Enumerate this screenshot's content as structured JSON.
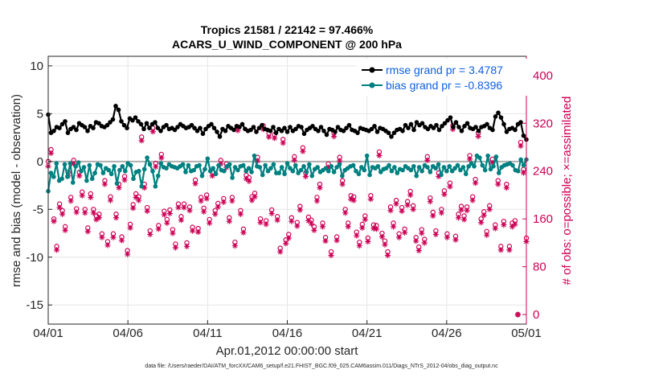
{
  "chart_data": {
    "type": "line",
    "title": "Tropics 21581 / 22142 = 97.466%",
    "subtitle": "ACARS_U_WIND_COMPONENT @ 200 hPa",
    "xlabel": "Apr.01,2012 00:00:00 start",
    "ylabel_left": "rmse and bias (model - observation)",
    "ylabel_right": "# of obs: o=possible; ×=assimilated",
    "footnote": "data file: /Users/raeder/DAI/ATM_forcXX/CAM6_setup/f.e21.FHIST_BGC.f09_025.CAM6assim.011/Diags_NTrS_2012-04/obs_diag_output.nc",
    "x_range_days": [
      0,
      30
    ],
    "ylim_left": [
      -17,
      11
    ],
    "ylim_right": [
      -16,
      432
    ],
    "xticks": [
      {
        "day": 0,
        "label": "04/01"
      },
      {
        "day": 5,
        "label": "04/06"
      },
      {
        "day": 10,
        "label": "04/11"
      },
      {
        "day": 15,
        "label": "04/16"
      },
      {
        "day": 20,
        "label": "04/21"
      },
      {
        "day": 25,
        "label": "04/26"
      },
      {
        "day": 30,
        "label": "05/01"
      }
    ],
    "yticks_left": [
      {
        "value": 10,
        "label": "10"
      },
      {
        "value": 5,
        "label": "5"
      },
      {
        "value": 0,
        "label": "0"
      },
      {
        "value": -5,
        "label": "-5"
      },
      {
        "value": -10,
        "label": "-10"
      },
      {
        "value": -15,
        "label": "-15"
      }
    ],
    "yticks_right": [
      {
        "value": 400,
        "label": "400"
      },
      {
        "value": 320,
        "label": "320"
      },
      {
        "value": 240,
        "label": "240"
      },
      {
        "value": 160,
        "label": "160"
      },
      {
        "value": 80,
        "label": "80"
      },
      {
        "value": 0,
        "label": "0"
      }
    ],
    "grid": true,
    "legend_position": "top-right",
    "zero_line": 0,
    "series": [
      {
        "name": "rmse grand pr = 3.4787",
        "axis": "left",
        "color": "#000000",
        "marker": "circle",
        "values": [
          4.9,
          3.0,
          3.2,
          3.6,
          3.5,
          3.9,
          4.2,
          3.0,
          3.4,
          3.6,
          3.3,
          4.0,
          3.8,
          3.6,
          3.2,
          3.7,
          3.5,
          4.1,
          4.0,
          3.7,
          3.6,
          3.8,
          4.1,
          4.4,
          5.8,
          5.4,
          4.2,
          3.8,
          3.5,
          4.5,
          4.3,
          4.6,
          4.2,
          3.9,
          3.4,
          4.0,
          3.5,
          3.9,
          4.1,
          3.5,
          3.2,
          3.6,
          3.8,
          3.4,
          3.5,
          3.3,
          3.6,
          3.9,
          3.7,
          3.5,
          3.6,
          3.8,
          3.5,
          3.2,
          3.5,
          2.9,
          3.4,
          3.7,
          3.9,
          3.5,
          3.1,
          2.6,
          3.4,
          3.2,
          3.7,
          3.5,
          3.3,
          3.7,
          3.6,
          3.9,
          3.4,
          3.2,
          3.3,
          3.6,
          3.1,
          3.5,
          3.8,
          3.4,
          3.3,
          3.2,
          3.6,
          3.0,
          3.4,
          3.2,
          3.5,
          3.1,
          3.6,
          3.2,
          3.4,
          3.7,
          3.6,
          2.9,
          3.3,
          3.5,
          3.7,
          3.4,
          3.2,
          3.6,
          3.2,
          2.8,
          3.4,
          3.3,
          3.1,
          3.6,
          3.3,
          3.2,
          3.5,
          3.8,
          3.3,
          3.2,
          3.0,
          3.5,
          3.4,
          3.3,
          3.2,
          3.4,
          3.7,
          3.1,
          3.5,
          3.4,
          3.2,
          3.0,
          2.6,
          3.0,
          3.3,
          3.4,
          3.2,
          3.8,
          3.5,
          3.9,
          3.3,
          4.1,
          3.8,
          4.0,
          3.6,
          3.4,
          3.7,
          3.5,
          3.8,
          3.3,
          3.7,
          4.0,
          4.3,
          4.6,
          3.6,
          4.1,
          3.6,
          3.2,
          3.7,
          4.0,
          3.5,
          3.4,
          3.6,
          3.2,
          3.6,
          3.7,
          3.9,
          3.5,
          3.3,
          4.7,
          5.1,
          4.6,
          3.9,
          3.1,
          3.4,
          3.5,
          3.3,
          3.9,
          4.1,
          2.7,
          2.3
        ]
      },
      {
        "name": "bias grand pr = -0.8396",
        "axis": "left",
        "color": "#008080",
        "marker": "circle",
        "values": [
          -3.1,
          -1.2,
          -1.6,
          -0.2,
          -2.0,
          -1.8,
          -0.3,
          -1.6,
          -0.2,
          -2.2,
          -0.5,
          -0.1,
          -1.0,
          -0.6,
          -2.0,
          -0.4,
          -1.8,
          -1.2,
          -0.3,
          -0.4,
          -1.2,
          -0.7,
          -0.9,
          -1.3,
          -0.5,
          -2.3,
          -0.9,
          -0.5,
          -1.0,
          -0.2,
          -0.4,
          -1.8,
          -1.1,
          -1.0,
          -2.6,
          -0.8,
          0.4,
          -0.3,
          -1.0,
          -2.6,
          -1.5,
          -0.2,
          -0.6,
          -0.7,
          -0.3,
          -0.5,
          -0.6,
          -0.7,
          -0.5,
          -0.3,
          -1.1,
          -0.4,
          -1.0,
          -0.9,
          -0.5,
          -0.4,
          -1.5,
          -0.8,
          0.3,
          -1.0,
          -0.7,
          -1.3,
          -0.4,
          -0.9,
          -1.0,
          -0.5,
          -0.3,
          -1.7,
          -0.6,
          -0.9,
          -0.5,
          -0.4,
          -1.0,
          -0.7,
          -1.1,
          0.6,
          -0.5,
          -0.6,
          -1.4,
          -0.4,
          -1.0,
          -0.7,
          -0.3,
          -1.2,
          -1.2,
          -0.6,
          -1.3,
          -0.2,
          -0.7,
          -1.0,
          -0.4,
          -1.2,
          -0.9,
          -0.5,
          -1.1,
          -0.3,
          -1.5,
          -0.8,
          -0.6,
          -1.1,
          -0.9,
          -0.7,
          -1.0,
          -0.5,
          -1.1,
          -0.6,
          -0.3,
          -1.5,
          -0.9,
          -0.7,
          -0.5,
          -0.4,
          -1.0,
          -1.3,
          -0.6,
          -0.9,
          0.6,
          -1.4,
          -0.6,
          -0.7,
          -0.5,
          -1.1,
          -0.8,
          -0.7,
          -0.4,
          -1.0,
          -0.6,
          -1.2,
          -0.8,
          -0.9,
          -0.5,
          -0.7,
          -0.9,
          -0.5,
          -1.5,
          -0.6,
          -1.0,
          -0.4,
          -0.6,
          -1.1,
          -0.5,
          -0.7,
          -0.3,
          -1.4,
          -0.6,
          -1.0,
          -0.5,
          -1.0,
          -0.7,
          -0.4,
          -0.9,
          -0.6,
          -1.3,
          -0.5,
          -0.2,
          -0.5,
          0.6,
          0.4,
          -0.4,
          -0.9,
          0.6,
          -0.8,
          -0.5,
          0.5,
          -1.2,
          -0.6,
          -0.4,
          -0.3,
          -0.2,
          -0.4,
          -0.9,
          -1.0,
          0.2,
          -0.4,
          0.2
        ]
      },
      {
        "name": "possible",
        "axis": "right",
        "color": "#cc0055",
        "marker": "open-circle",
        "values": [
          256,
          276,
          160,
          114,
          185,
          174,
          147,
          238,
          196,
          258,
          177,
          238,
          205,
          176,
          145,
          202,
          176,
          165,
          168,
          135,
          224,
          122,
          197,
          135,
          168,
          218,
          130,
          231,
          107,
          151,
          184,
          202,
          197,
          297,
          218,
          179,
          140,
          312,
          253,
          149,
          268,
          173,
          159,
          175,
          142,
          118,
          185,
          164,
          185,
          120,
          180,
          146,
          225,
          144,
          196,
          178,
          200,
          159,
          238,
          174,
          186,
          258,
          194,
          252,
          162,
          196,
          121,
          314,
          174,
          143,
          233,
          229,
          197,
          203,
          263,
          160,
          316,
          157,
          303,
          175,
          301,
          164,
          111,
          293,
          125,
          134,
          162,
          264,
          154,
          181,
          279,
          237,
          163,
          158,
          147,
          196,
          218,
          153,
          129,
          252,
          105,
          304,
          130,
          263,
          224,
          176,
          153,
          199,
          197,
          138,
          121,
          151,
          165,
          128,
          199,
          150,
          149,
          272,
          136,
          123,
          105,
          180,
          153,
          191,
          135,
          179,
          143,
          189,
          206,
          182,
          129,
          113,
          142,
          126,
          264,
          195,
          171,
          140,
          237,
          176,
          207,
          135,
          220,
          316,
          131,
          168,
          181,
          165,
          180,
          266,
          197,
          226,
          304,
          160,
          172,
          139,
          182,
          260,
          150,
          224,
          114,
          156,
          218,
          114,
          153,
          157,
          0,
          288,
          243,
          128
        ]
      },
      {
        "name": "assimilated",
        "axis": "right",
        "color": "#cc0055",
        "marker": "asterisk",
        "values": [
          248,
          270,
          156,
          108,
          179,
          168,
          141,
          232,
          190,
          252,
          171,
          232,
          199,
          170,
          139,
          196,
          170,
          159,
          162,
          129,
          218,
          116,
          191,
          129,
          162,
          212,
          124,
          225,
          101,
          145,
          178,
          196,
          191,
          291,
          212,
          173,
          134,
          306,
          247,
          143,
          262,
          167,
          153,
          169,
          136,
          112,
          179,
          158,
          179,
          114,
          174,
          140,
          219,
          138,
          190,
          172,
          194,
          153,
          232,
          168,
          180,
          252,
          188,
          246,
          156,
          190,
          115,
          308,
          168,
          137,
          227,
          223,
          191,
          197,
          257,
          154,
          310,
          151,
          297,
          169,
          295,
          158,
          105,
          287,
          119,
          128,
          156,
          258,
          148,
          175,
          273,
          231,
          157,
          152,
          141,
          190,
          212,
          147,
          123,
          246,
          99,
          298,
          124,
          257,
          218,
          170,
          147,
          193,
          191,
          132,
          115,
          145,
          159,
          122,
          193,
          144,
          143,
          266,
          130,
          117,
          99,
          174,
          147,
          185,
          129,
          173,
          137,
          183,
          200,
          176,
          123,
          107,
          136,
          120,
          258,
          189,
          165,
          134,
          231,
          170,
          201,
          129,
          214,
          310,
          125,
          162,
          175,
          159,
          174,
          260,
          191,
          220,
          298,
          154,
          166,
          133,
          176,
          254,
          144,
          218,
          108,
          150,
          212,
          108,
          147,
          151,
          0,
          282,
          237,
          122
        ]
      }
    ]
  }
}
